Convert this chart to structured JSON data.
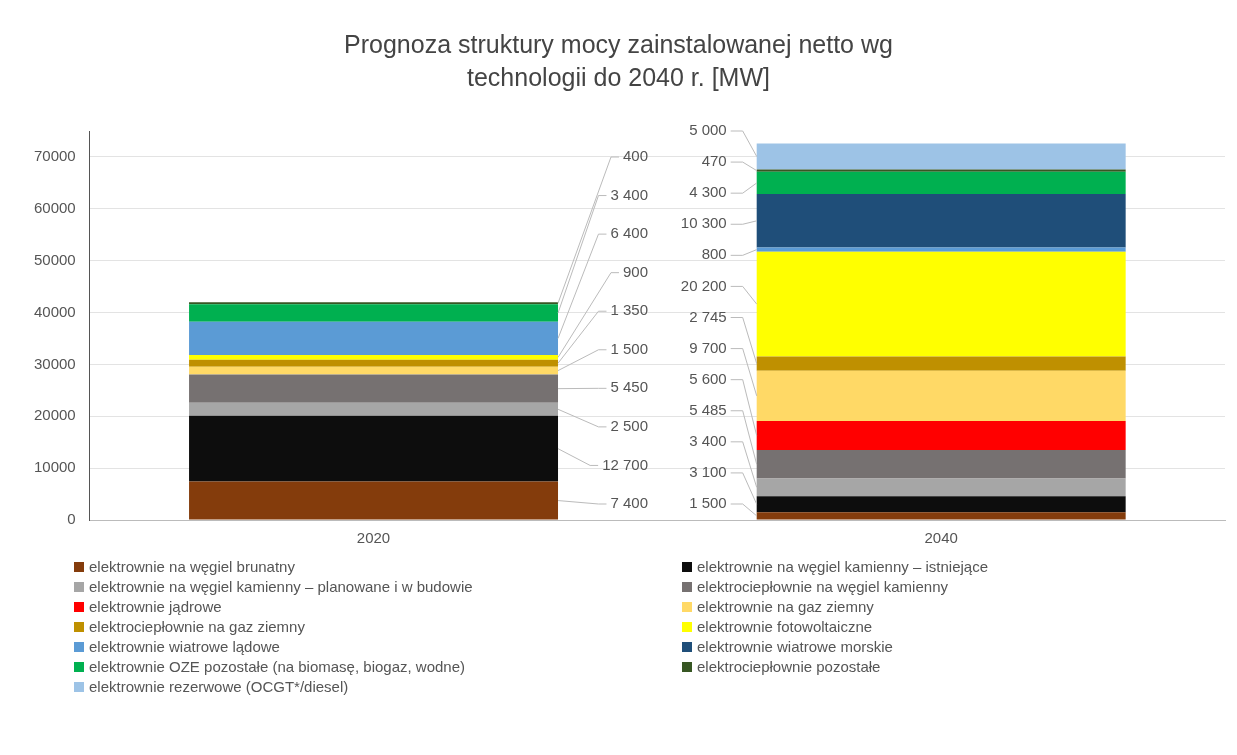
{
  "chart_data": {
    "type": "bar",
    "title": "Prognoza struktury mocy zainstalowanej netto wg technologii do 2040 r. [MW]",
    "categories": [
      "2020",
      "2040"
    ],
    "stacked": true,
    "ylim": [
      0,
      75000
    ],
    "yticks": [
      0,
      10000,
      20000,
      30000,
      40000,
      50000,
      60000,
      70000
    ],
    "grid": "y",
    "legend": "bottom",
    "series": [
      {
        "name": "elektrownie na węgiel brunatny",
        "color": "#843c0c",
        "values": [
          7400,
          1500
        ],
        "value_labels": [
          "7 400",
          "1 500"
        ]
      },
      {
        "name": "elektrownie na węgiel kamienny – istniejące",
        "color": "#0d0d0d",
        "values": [
          12700,
          3100
        ],
        "value_labels": [
          "12 700",
          "3 100"
        ]
      },
      {
        "name": "elektrownie na węgiel kamienny – planowane i w budowie",
        "color": "#a6a6a6",
        "values": [
          2500,
          3400
        ],
        "value_labels": [
          "2 500",
          "3 400"
        ]
      },
      {
        "name": "elektrociepłownie na węgiel kamienny",
        "color": "#767171",
        "values": [
          5450,
          5485
        ],
        "value_labels": [
          "5 450",
          "5 485"
        ]
      },
      {
        "name": "elektrownie jądrowe",
        "color": "#ff0000",
        "values": [
          null,
          5600
        ],
        "value_labels": [
          null,
          "5 600"
        ]
      },
      {
        "name": "elektrownie na gaz ziemny",
        "color": "#ffd966",
        "values": [
          1500,
          9700
        ],
        "value_labels": [
          "1 500",
          "9 700"
        ]
      },
      {
        "name": "elektrociepłownie na gaz ziemny",
        "color": "#bf9000",
        "values": [
          1350,
          2745
        ],
        "value_labels": [
          "1 350",
          "2 745"
        ]
      },
      {
        "name": "elektrownie fotowoltaiczne",
        "color": "#ffff00",
        "values": [
          900,
          20200
        ],
        "value_labels": [
          "900",
          "20 200"
        ]
      },
      {
        "name": "elektrownie wiatrowe lądowe",
        "color": "#5b9bd5",
        "values": [
          6400,
          800
        ],
        "value_labels": [
          "6 400",
          "800"
        ]
      },
      {
        "name": "elektrownie wiatrowe morskie",
        "color": "#1f4e79",
        "values": [
          null,
          10300
        ],
        "value_labels": [
          null,
          "10 300"
        ]
      },
      {
        "name": "elektrownie OZE pozostałe (na biomasę, biogaz, wodne)",
        "color": "#00b050",
        "values": [
          3400,
          4300
        ],
        "value_labels": [
          "3 400",
          "4 300"
        ]
      },
      {
        "name": "elektrociepłownie pozostałe",
        "color": "#375623",
        "values": [
          400,
          470
        ],
        "value_labels": [
          "400",
          "470"
        ]
      },
      {
        "name": "elektrownie rezerwowe (OCGT*/diesel)",
        "color": "#9dc3e6",
        "values": [
          null,
          5000
        ],
        "value_labels": [
          null,
          "5 000"
        ]
      }
    ]
  }
}
